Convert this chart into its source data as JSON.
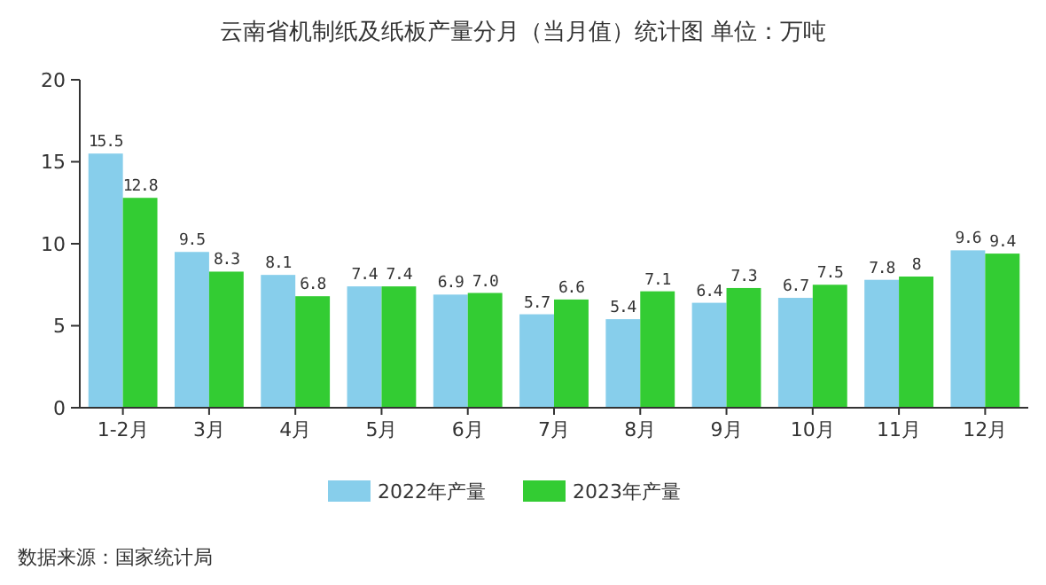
{
  "chart_data": {
    "type": "bar",
    "title": "云南省机制纸及纸板产量分月（当月值）统计图 单位：万吨",
    "categories": [
      "1-2月",
      "3月",
      "4月",
      "5月",
      "6月",
      "7月",
      "8月",
      "9月",
      "10月",
      "11月",
      "12月"
    ],
    "series": [
      {
        "name": "2022年产量",
        "color": "#87ceeb",
        "values": [
          15.5,
          9.5,
          8.1,
          7.4,
          6.9,
          5.7,
          5.4,
          6.4,
          6.7,
          7.8,
          9.6
        ],
        "value_labels": [
          "15.5",
          "9.5",
          "8.1",
          "7.4",
          "6.9",
          "5.7",
          "5.4",
          "6.4",
          "6.7",
          "7.8",
          "9.6"
        ]
      },
      {
        "name": "2023年产量",
        "color": "#33cc33",
        "values": [
          12.8,
          8.3,
          6.8,
          7.4,
          7.0,
          6.6,
          7.1,
          7.3,
          7.5,
          8,
          9.4
        ],
        "value_labels": [
          "12.8",
          "8.3",
          "6.8",
          "7.4",
          "7.0",
          "6.6",
          "7.1",
          "7.3",
          "7.5",
          "8",
          "9.4"
        ]
      }
    ],
    "ylim": [
      0,
      20
    ],
    "yticks": [
      0,
      5,
      10,
      15,
      20
    ],
    "grid": false,
    "legend": "bottom",
    "annotations": [
      "数据来源：国家统计局"
    ]
  }
}
